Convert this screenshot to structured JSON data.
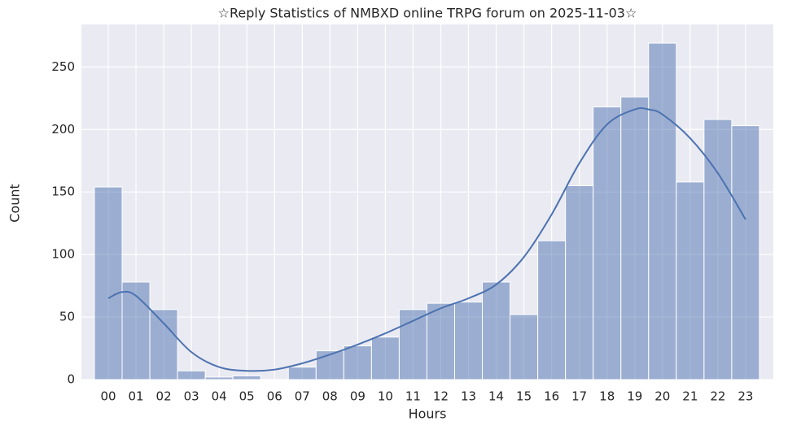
{
  "chart_data": {
    "type": "bar",
    "title": "☆Reply Statistics of NMBXD online TRPG forum on 2025-11-03☆",
    "xlabel": "Hours",
    "ylabel": "Count",
    "categories": [
      "00",
      "01",
      "02",
      "03",
      "04",
      "05",
      "06",
      "07",
      "08",
      "09",
      "10",
      "11",
      "12",
      "13",
      "14",
      "15",
      "16",
      "17",
      "18",
      "19",
      "20",
      "21",
      "22",
      "23"
    ],
    "values": [
      154,
      78,
      56,
      7,
      2,
      3,
      0,
      10,
      23,
      27,
      34,
      56,
      61,
      62,
      78,
      52,
      111,
      155,
      218,
      226,
      269,
      158,
      208,
      203
    ],
    "color": "#4c72b0",
    "kde": {
      "x": [
        0,
        0.5,
        1,
        2,
        3,
        4,
        5,
        6,
        7,
        8,
        9,
        10,
        11,
        12,
        13,
        14,
        15,
        16,
        17,
        18,
        19,
        19.5,
        20,
        21,
        22,
        23
      ],
      "values": [
        65,
        70,
        67,
        45,
        22,
        10,
        7,
        8,
        13,
        20,
        28,
        37,
        47,
        57,
        65,
        76,
        98,
        132,
        173,
        204,
        216,
        216,
        212,
        193,
        165,
        128
      ]
    },
    "ylim": [
      0,
      284
    ],
    "yticks": [
      0,
      50,
      100,
      150,
      200,
      250
    ],
    "grid": true
  }
}
